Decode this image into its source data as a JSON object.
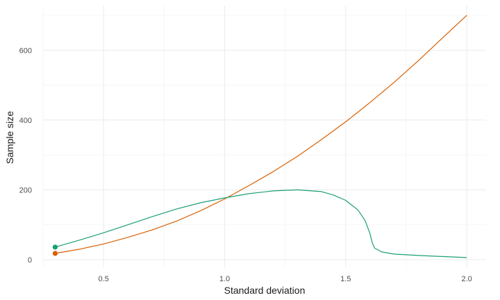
{
  "chart_data": {
    "type": "line",
    "xlabel": "Standard deviation",
    "ylabel": "Sample size",
    "xlim": [
      0.25,
      2.08
    ],
    "ylim": [
      -22,
      728
    ],
    "x_ticks": [
      0.5,
      1.0,
      1.5,
      2.0
    ],
    "x_tick_labels": [
      "0.5",
      "1.0",
      "1.5",
      "2.0"
    ],
    "y_ticks": [
      0,
      200,
      400,
      600
    ],
    "y_tick_labels": [
      "0",
      "200",
      "400",
      "600"
    ],
    "x_minor_ticks": [
      0.25,
      0.75,
      1.25,
      1.75
    ],
    "y_minor_ticks": [
      100,
      300,
      500,
      700
    ],
    "grid": true,
    "legend": "none",
    "series": [
      {
        "color": "#d95f02",
        "x": [
          0.3,
          0.4,
          0.5,
          0.6,
          0.7,
          0.8,
          0.9,
          1.0,
          1.1,
          1.2,
          1.3,
          1.4,
          1.5,
          1.6,
          1.7,
          1.8,
          1.9,
          2.0
        ],
        "y": [
          18,
          30,
          45,
          64,
          85,
          110,
          140,
          174,
          212,
          252,
          296,
          344,
          395,
          450,
          508,
          570,
          635,
          700
        ],
        "start_marker": true
      },
      {
        "color": "#1b9e77",
        "x": [
          0.3,
          0.4,
          0.5,
          0.6,
          0.7,
          0.8,
          0.9,
          1.0,
          1.1,
          1.2,
          1.3,
          1.4,
          1.45,
          1.5,
          1.55,
          1.58,
          1.6,
          1.61,
          1.62,
          1.65,
          1.7,
          1.8,
          1.9,
          2.0
        ],
        "y": [
          36,
          56,
          77,
          100,
          123,
          145,
          163,
          177,
          189,
          197,
          200,
          195,
          185,
          170,
          143,
          112,
          75,
          48,
          33,
          22,
          16,
          12,
          9,
          6
        ],
        "start_marker": true
      }
    ]
  }
}
